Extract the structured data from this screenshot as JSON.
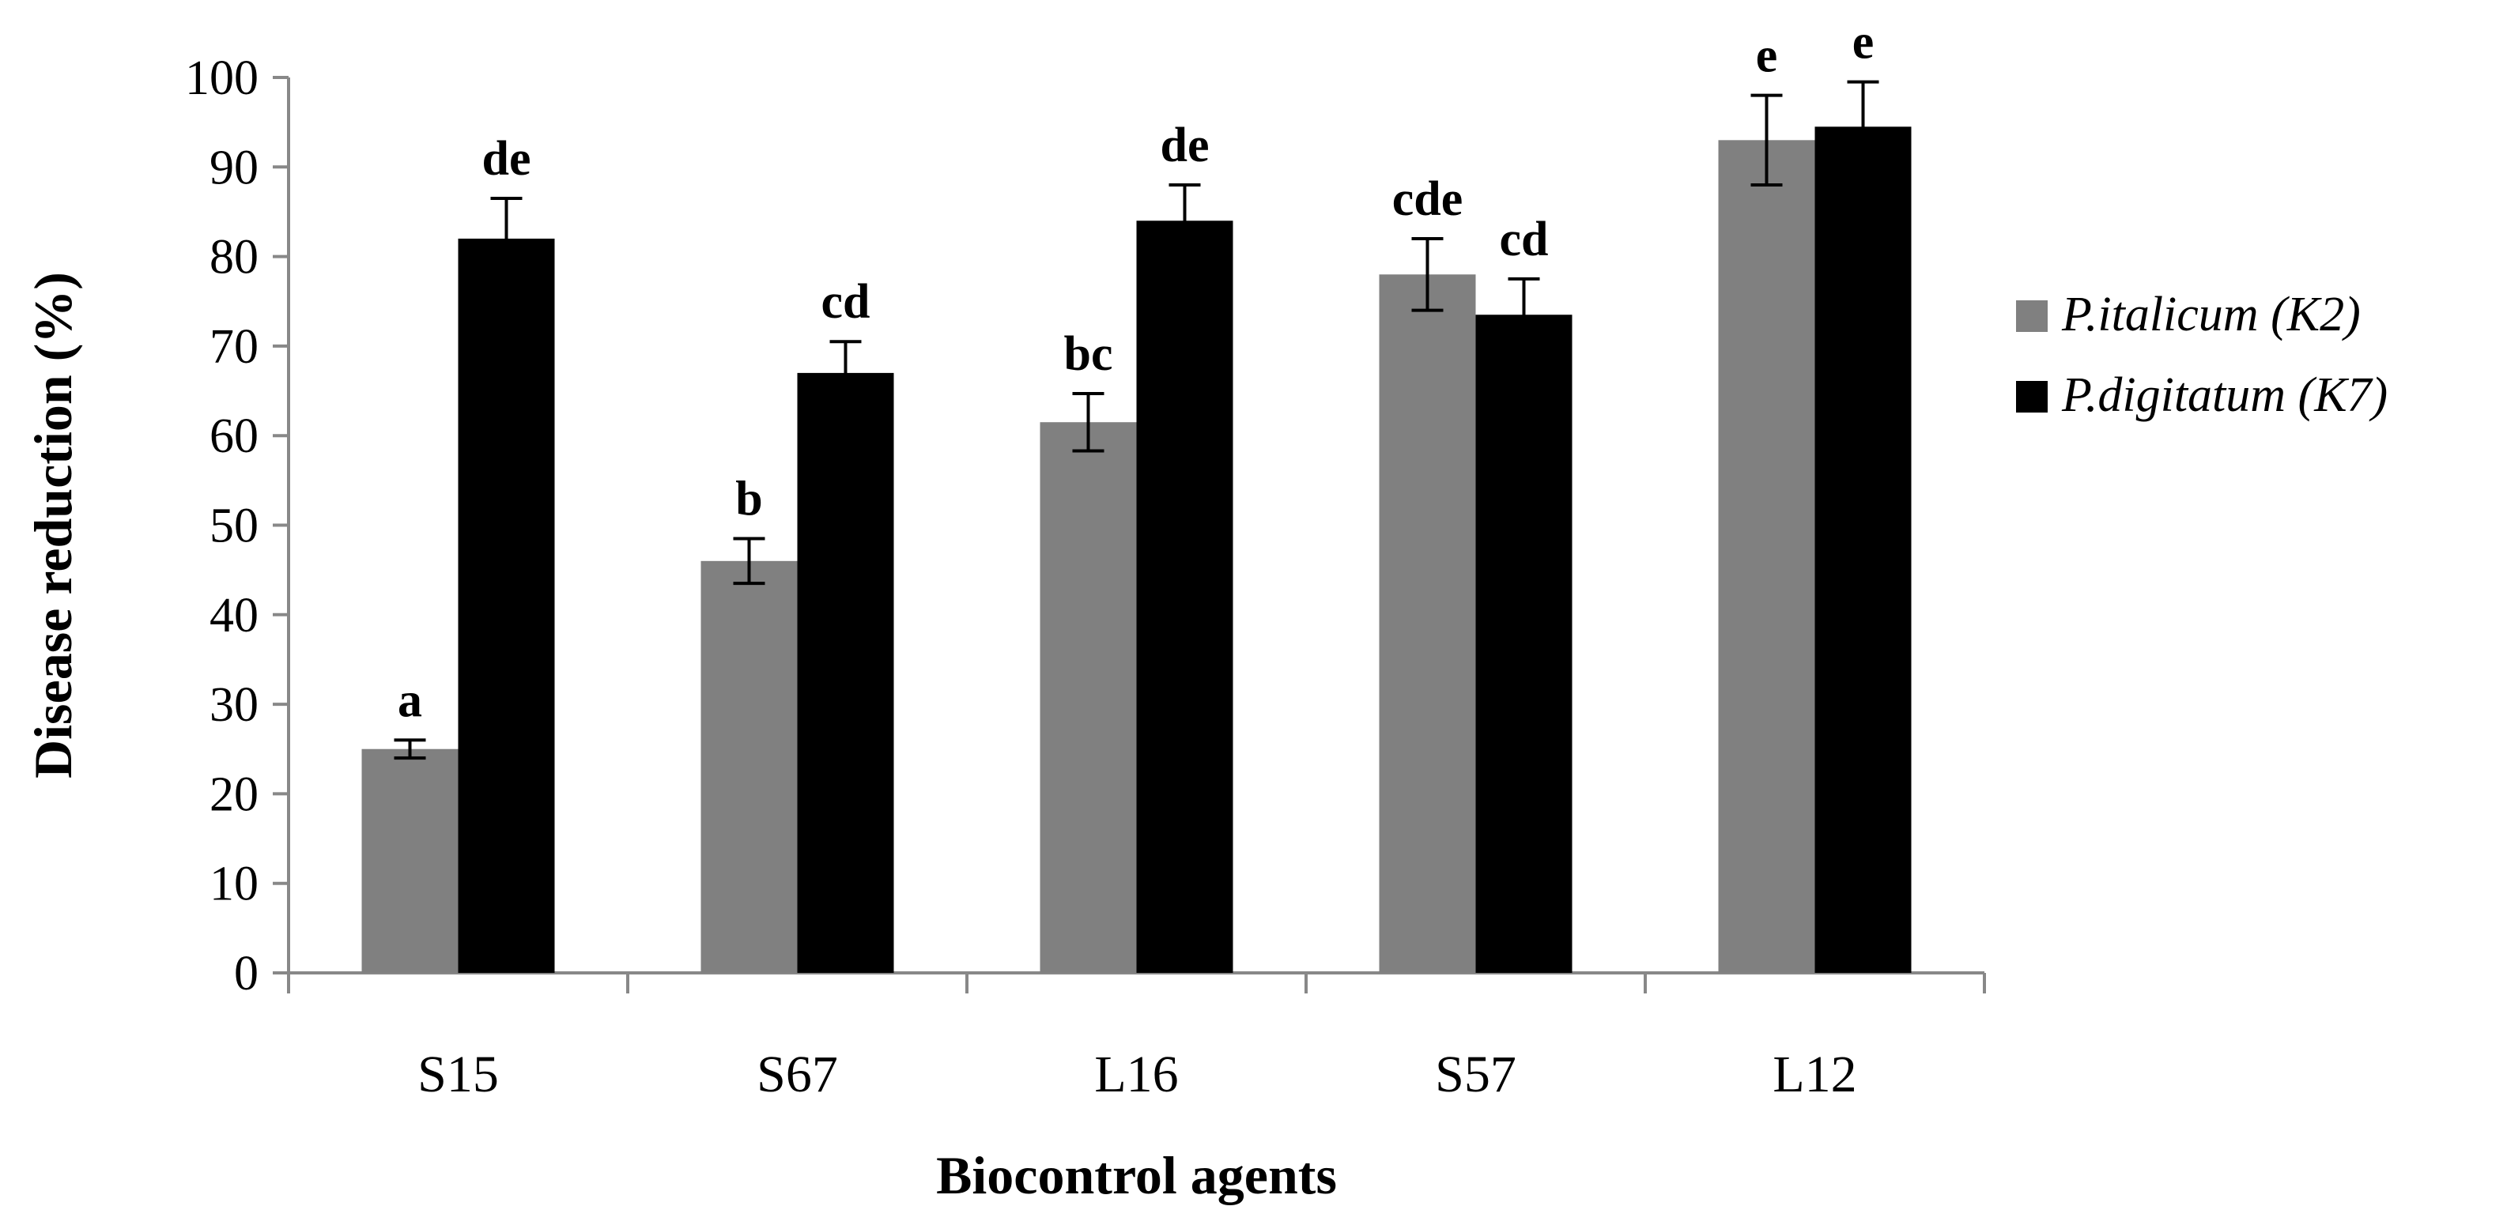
{
  "chart_data": {
    "type": "bar",
    "title": "",
    "xlabel": "Biocontrol agents",
    "ylabel": "Disease reduction (%)",
    "ylim": [
      0,
      100
    ],
    "yticks": [
      0,
      10,
      20,
      30,
      40,
      50,
      60,
      70,
      80,
      90,
      100
    ],
    "categories": [
      "S15",
      "S67",
      "L16",
      "S57",
      "L12"
    ],
    "grid": false,
    "legend_position": "right",
    "series": [
      {
        "name": "P.italicum (K2)",
        "color": "#808080",
        "values": [
          25,
          46,
          61.5,
          78,
          93
        ],
        "errors": [
          1,
          2.5,
          3.2,
          4,
          5
        ],
        "labels": [
          "a",
          "b",
          "bc",
          "cde",
          "e"
        ]
      },
      {
        "name": "P.digitatum (K7)",
        "color": "#000000",
        "values": [
          82,
          67,
          84,
          73.5,
          94.5
        ],
        "errors": [
          4.5,
          3.5,
          4,
          4,
          5
        ],
        "labels": [
          "de",
          "cd",
          "de",
          "cd",
          "e"
        ]
      }
    ]
  }
}
